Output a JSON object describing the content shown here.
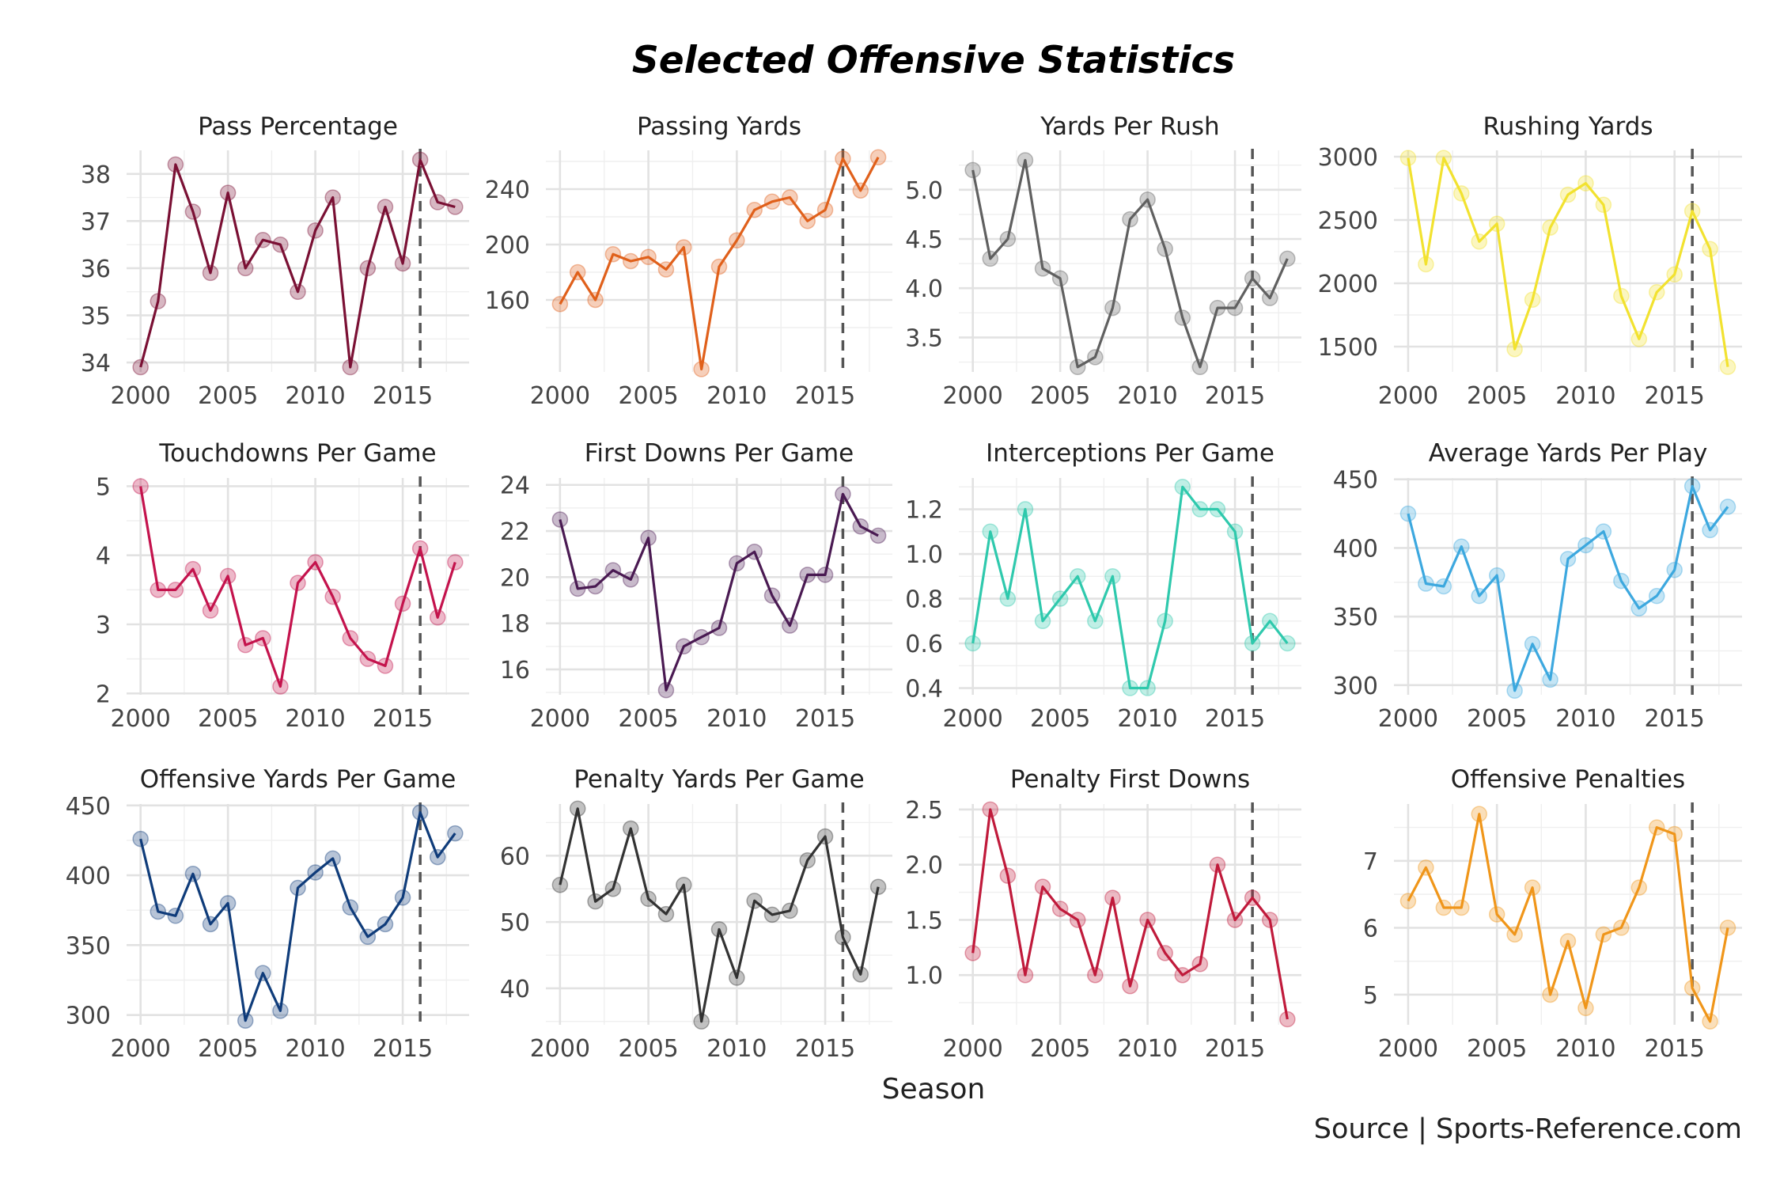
{
  "title": "Selected Offensive Statistics",
  "xlabel": "Season",
  "caption": "Source | Sports-Reference.com",
  "chart_data": [
    {
      "type": "line",
      "title": "Pass Percentage",
      "color": "#7a1034",
      "vline": 2016,
      "x": [
        2000,
        2001,
        2002,
        2003,
        2004,
        2005,
        2006,
        2007,
        2008,
        2009,
        2010,
        2011,
        2012,
        2013,
        2014,
        2015,
        2016,
        2017,
        2018
      ],
      "values": [
        33.9,
        35.3,
        38.2,
        37.2,
        35.9,
        37.6,
        36.0,
        36.6,
        36.5,
        35.5,
        36.8,
        37.5,
        33.9,
        36.0,
        37.3,
        36.1,
        38.3,
        37.4,
        37.3
      ],
      "yticks": [
        34,
        35,
        36,
        37,
        38
      ],
      "ylim": [
        33.8,
        38.5
      ],
      "xticks": [
        2000,
        2005,
        2010,
        2015
      ]
    },
    {
      "type": "line",
      "title": "Passing Yards",
      "color": "#e0601b",
      "vline": 2016,
      "x": [
        2000,
        2001,
        2002,
        2003,
        2004,
        2005,
        2006,
        2007,
        2008,
        2009,
        2010,
        2011,
        2012,
        2013,
        2014,
        2015,
        2016,
        2017,
        2018
      ],
      "values": [
        157,
        180,
        160,
        193,
        188,
        191,
        182,
        198,
        110,
        184,
        203,
        225,
        231,
        234,
        217,
        225,
        262,
        239,
        263
      ],
      "yticks": [
        160,
        200,
        240
      ],
      "ylim": [
        108,
        268
      ],
      "xticks": [
        2000,
        2005,
        2010,
        2015
      ]
    },
    {
      "type": "line",
      "title": "Yards Per Rush",
      "color": "#606060",
      "vline": 2016,
      "x": [
        2000,
        2001,
        2002,
        2003,
        2004,
        2005,
        2006,
        2007,
        2008,
        2009,
        2010,
        2011,
        2012,
        2013,
        2014,
        2015,
        2016,
        2017,
        2018
      ],
      "values": [
        5.2,
        4.3,
        4.5,
        5.3,
        4.2,
        4.1,
        3.2,
        3.3,
        3.8,
        4.7,
        4.9,
        4.4,
        3.7,
        3.2,
        3.8,
        3.8,
        4.1,
        3.9,
        4.3
      ],
      "yticks": [
        3.5,
        4.0,
        4.5,
        5.0
      ],
      "ylim": [
        3.15,
        5.4
      ],
      "xticks": [
        2000,
        2005,
        2010,
        2015
      ]
    },
    {
      "type": "line",
      "title": "Rushing Yards",
      "color": "#f2e230",
      "vline": 2016,
      "x": [
        2000,
        2001,
        2002,
        2003,
        2004,
        2005,
        2006,
        2007,
        2008,
        2009,
        2010,
        2011,
        2012,
        2013,
        2014,
        2015,
        2016,
        2017,
        2018
      ],
      "values": [
        2990,
        2150,
        2990,
        2710,
        2330,
        2470,
        1480,
        1870,
        2440,
        2700,
        2790,
        2620,
        1900,
        1560,
        1930,
        2070,
        2570,
        2270,
        1340
      ],
      "yticks": [
        1500,
        2000,
        2500,
        3000
      ],
      "ylim": [
        1300,
        3050
      ],
      "xticks": [
        2000,
        2005,
        2010,
        2015
      ]
    },
    {
      "type": "line",
      "title": "Touchdowns Per Game",
      "color": "#c4134d",
      "vline": 2016,
      "x": [
        2000,
        2001,
        2002,
        2003,
        2004,
        2005,
        2006,
        2007,
        2008,
        2009,
        2010,
        2011,
        2012,
        2013,
        2014,
        2015,
        2016,
        2017,
        2018
      ],
      "values": [
        5.0,
        3.5,
        3.5,
        3.8,
        3.2,
        3.7,
        2.7,
        2.8,
        2.1,
        3.6,
        3.9,
        3.4,
        2.8,
        2.5,
        2.4,
        3.3,
        4.1,
        3.1,
        3.9
      ],
      "yticks": [
        2,
        3,
        4,
        5
      ],
      "ylim": [
        1.98,
        5.12
      ],
      "xticks": [
        2000,
        2005,
        2010,
        2015
      ]
    },
    {
      "type": "line",
      "title": "First Downs Per Game",
      "color": "#4a1a52",
      "vline": 2016,
      "x": [
        2000,
        2001,
        2002,
        2003,
        2004,
        2005,
        2006,
        2007,
        2008,
        2009,
        2010,
        2011,
        2012,
        2013,
        2014,
        2015,
        2016,
        2017,
        2018
      ],
      "values": [
        22.5,
        19.5,
        19.6,
        20.3,
        19.9,
        21.7,
        15.1,
        17.0,
        17.4,
        17.8,
        20.6,
        21.1,
        19.2,
        17.9,
        20.1,
        20.1,
        23.6,
        22.2,
        21.8
      ],
      "yticks": [
        16,
        18,
        20,
        22,
        24
      ],
      "ylim": [
        14.9,
        24.3
      ],
      "xticks": [
        2000,
        2005,
        2010,
        2015
      ]
    },
    {
      "type": "line",
      "title": "Interceptions Per Game",
      "color": "#2fc9ad",
      "vline": 2016,
      "x": [
        2000,
        2001,
        2002,
        2003,
        2004,
        2005,
        2006,
        2007,
        2008,
        2009,
        2010,
        2011,
        2012,
        2013,
        2014,
        2015,
        2016,
        2017,
        2018
      ],
      "values": [
        0.6,
        1.1,
        0.8,
        1.2,
        0.7,
        0.8,
        0.9,
        0.7,
        0.9,
        0.4,
        0.4,
        0.7,
        1.3,
        1.2,
        1.2,
        1.1,
        0.6,
        0.7,
        0.6
      ],
      "yticks": [
        0.4,
        0.6,
        0.8,
        1.0,
        1.2
      ],
      "ylim": [
        0.37,
        1.34
      ],
      "xticks": [
        2000,
        2005,
        2010,
        2015
      ]
    },
    {
      "type": "line",
      "title": "Average Yards Per Play",
      "color": "#3da8df",
      "vline": 2016,
      "x": [
        2000,
        2001,
        2002,
        2003,
        2004,
        2005,
        2006,
        2007,
        2008,
        2009,
        2010,
        2011,
        2012,
        2013,
        2014,
        2015,
        2016,
        2017,
        2018
      ],
      "values": [
        425,
        374,
        372,
        401,
        365,
        380,
        296,
        330,
        304,
        392,
        402,
        412,
        376,
        356,
        365,
        384,
        445,
        413,
        430
      ],
      "yticks": [
        300,
        350,
        400,
        450
      ],
      "ylim": [
        293,
        451
      ],
      "xticks": [
        2000,
        2005,
        2010,
        2015
      ]
    },
    {
      "type": "line",
      "title": "Offensive Yards Per Game",
      "color": "#0f3c7a",
      "vline": 2016,
      "x": [
        2000,
        2001,
        2002,
        2003,
        2004,
        2005,
        2006,
        2007,
        2008,
        2009,
        2010,
        2011,
        2012,
        2013,
        2014,
        2015,
        2016,
        2017,
        2018
      ],
      "values": [
        426,
        374,
        371,
        401,
        365,
        380,
        296,
        330,
        303,
        391,
        402,
        412,
        377,
        356,
        365,
        384,
        445,
        413,
        430
      ],
      "yticks": [
        300,
        350,
        400,
        450
      ],
      "ylim": [
        293,
        451
      ],
      "xticks": [
        2000,
        2005,
        2010,
        2015
      ]
    },
    {
      "type": "line",
      "title": "Penalty Yards Per Game",
      "color": "#333333",
      "vline": 2016,
      "x": [
        2000,
        2001,
        2002,
        2003,
        2004,
        2005,
        2006,
        2007,
        2008,
        2009,
        2010,
        2011,
        2012,
        2013,
        2014,
        2015,
        2016,
        2017,
        2018
      ],
      "values": [
        55.6,
        67.1,
        53.1,
        55.0,
        64.1,
        53.5,
        51.2,
        55.6,
        35.0,
        48.9,
        41.6,
        53.2,
        51.1,
        51.7,
        59.3,
        62.9,
        47.7,
        42.1,
        55.3
      ],
      "yticks": [
        40,
        50,
        60
      ],
      "ylim": [
        34.5,
        67.8
      ],
      "xticks": [
        2000,
        2005,
        2010,
        2015
      ]
    },
    {
      "type": "line",
      "title": "Penalty First Downs",
      "color": "#c01a3b",
      "vline": 2016,
      "x": [
        2000,
        2001,
        2002,
        2003,
        2004,
        2005,
        2006,
        2007,
        2008,
        2009,
        2010,
        2011,
        2012,
        2013,
        2014,
        2015,
        2016,
        2017,
        2018
      ],
      "values": [
        1.2,
        2.5,
        1.9,
        1.0,
        1.8,
        1.6,
        1.5,
        1.0,
        1.7,
        0.9,
        1.5,
        1.2,
        1.0,
        1.1,
        2.0,
        1.5,
        1.7,
        1.5,
        0.6
      ],
      "yticks": [
        1.0,
        1.5,
        2.0,
        2.5
      ],
      "ylim": [
        0.55,
        2.55
      ],
      "xticks": [
        2000,
        2005,
        2010,
        2015
      ]
    },
    {
      "type": "line",
      "title": "Offensive Penalties",
      "color": "#f0961a",
      "vline": 2016,
      "x": [
        2000,
        2001,
        2002,
        2003,
        2004,
        2005,
        2006,
        2007,
        2008,
        2009,
        2010,
        2011,
        2012,
        2013,
        2014,
        2015,
        2016,
        2017,
        2018
      ],
      "values": [
        6.4,
        6.9,
        6.3,
        6.3,
        7.7,
        6.2,
        5.9,
        6.6,
        5.0,
        5.8,
        4.8,
        5.9,
        6.0,
        6.6,
        7.5,
        7.4,
        5.1,
        4.6,
        6.0
      ],
      "yticks": [
        5,
        6,
        7
      ],
      "ylim": [
        4.55,
        7.85
      ],
      "xticks": [
        2000,
        2005,
        2010,
        2015
      ]
    }
  ]
}
